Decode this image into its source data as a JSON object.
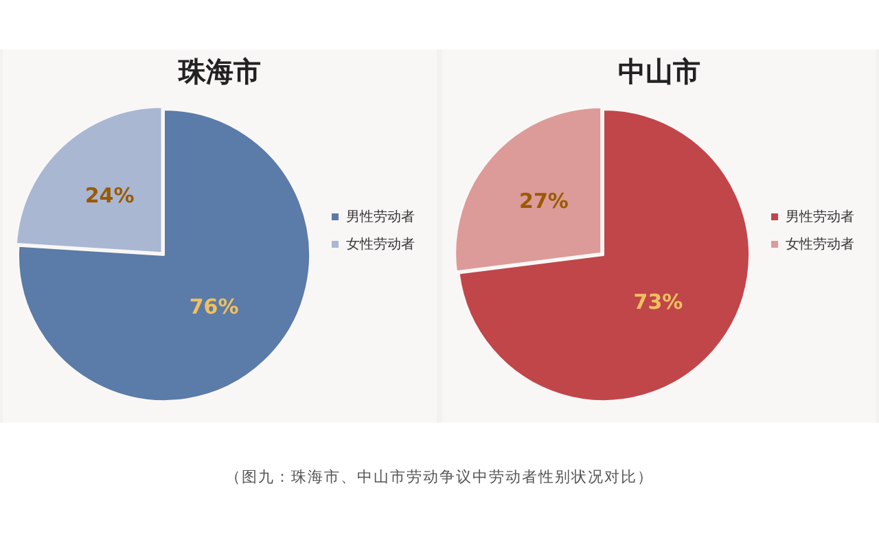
{
  "chart_data": [
    {
      "type": "pie",
      "title": "珠海市",
      "categories": [
        "男性劳动者",
        "女性劳动者"
      ],
      "values": [
        76,
        24
      ],
      "value_labels": [
        "76%",
        "24%"
      ],
      "colors": [
        "#5b7ba8",
        "#a9b7d3"
      ],
      "legend": "right"
    },
    {
      "type": "pie",
      "title": "中山市",
      "categories": [
        "男性劳动者",
        "女性劳动者"
      ],
      "values": [
        73,
        27
      ],
      "value_labels": [
        "73%",
        "27%"
      ],
      "colors": [
        "#c0464a",
        "#dc9b98"
      ],
      "legend": "right",
      "annotations": [
        "（图九：珠海市、中山市劳动争议中劳动者性别状况对比）"
      ]
    }
  ]
}
